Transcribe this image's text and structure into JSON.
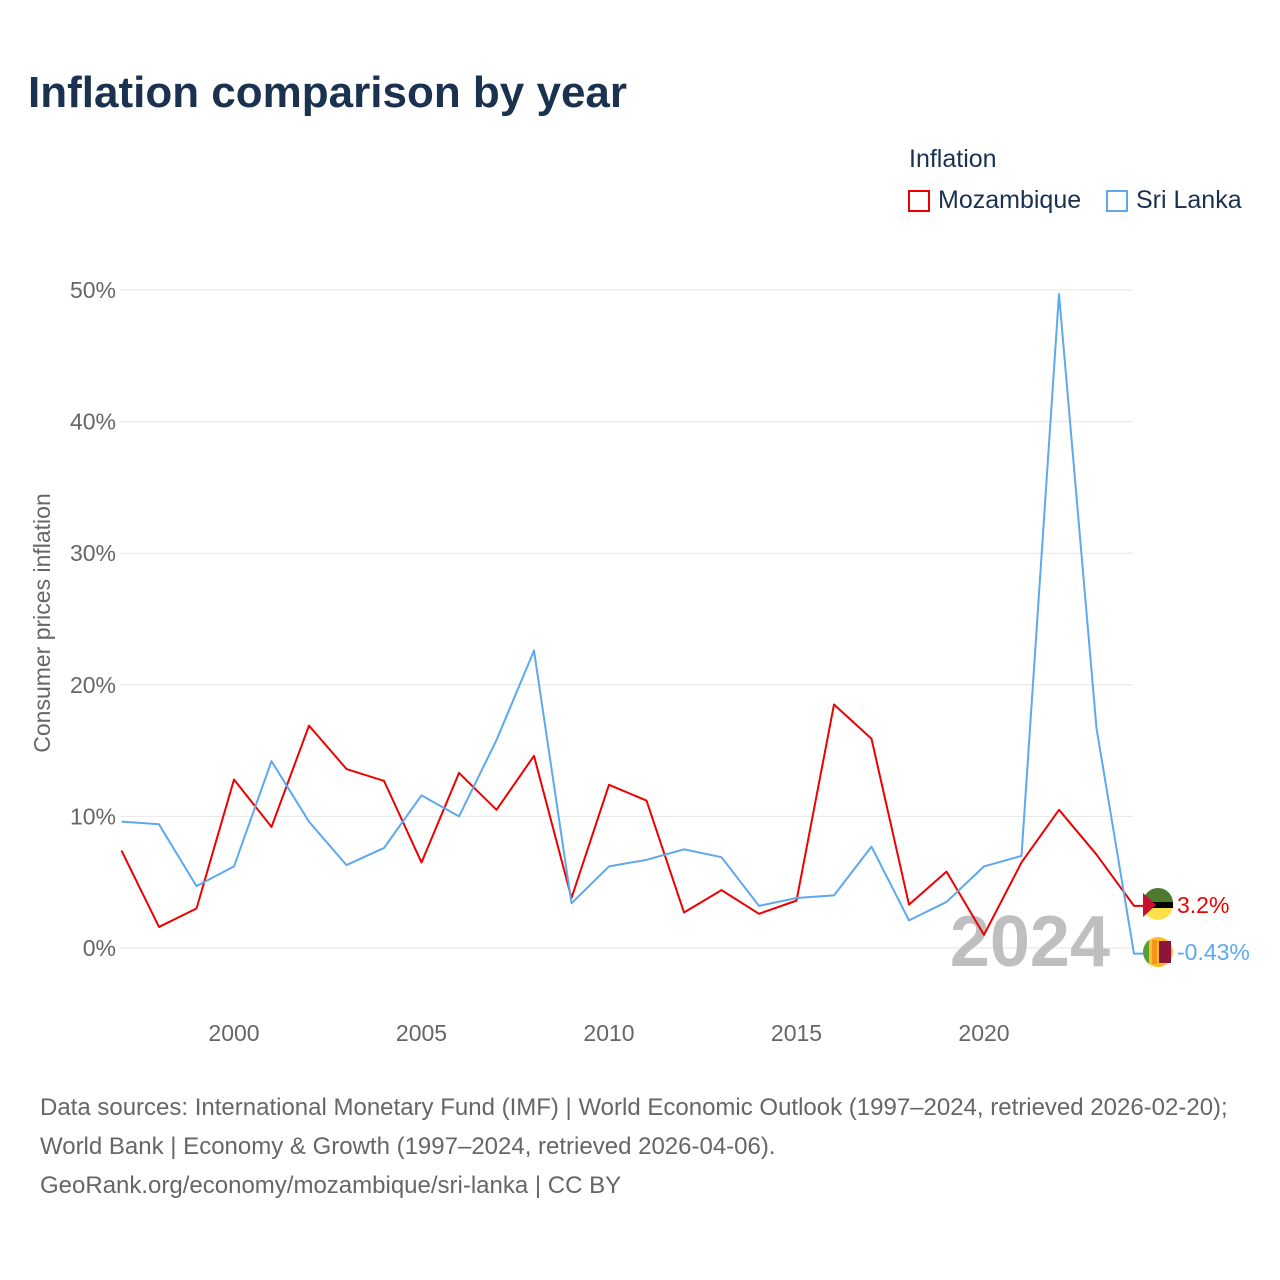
{
  "title": "Inflation comparison by year",
  "legend": {
    "title": "Inflation",
    "items": [
      "Mozambique",
      "Sri Lanka"
    ]
  },
  "footer": {
    "line": "Data sources: International Monetary Fund (IMF) | World Economic Outlook (1997–2024, retrieved 2026-02-20); World Bank | Economy & Growth (1997–2024, retrieved 2026-04-06).",
    "link": "GeoRank.org/economy/mozambique/sri-lanka | CC BY"
  },
  "chart_data": {
    "type": "line",
    "title": "Inflation comparison by year",
    "xlabel": "",
    "ylabel": "Consumer prices inflation",
    "ylim": [
      -5,
      52
    ],
    "yticks": [
      0,
      10,
      20,
      30,
      40,
      50
    ],
    "ytick_labels": [
      "0%",
      "10%",
      "20%",
      "30%",
      "40%",
      "50%"
    ],
    "xticks": [
      2000,
      2005,
      2010,
      2015,
      2020
    ],
    "xtick_labels": [
      "2000",
      "2005",
      "2010",
      "2015",
      "2020"
    ],
    "year_label": "2024",
    "x": [
      1997,
      1998,
      1999,
      2000,
      2001,
      2002,
      2003,
      2004,
      2005,
      2006,
      2007,
      2008,
      2009,
      2010,
      2011,
      2012,
      2013,
      2014,
      2015,
      2016,
      2017,
      2018,
      2019,
      2020,
      2021,
      2022,
      2023,
      2024
    ],
    "series": [
      {
        "name": "Mozambique",
        "color": "#ee0000",
        "end_label": "3.2%",
        "values": [
          7.4,
          1.6,
          3.0,
          12.8,
          9.2,
          16.9,
          13.6,
          12.7,
          6.5,
          13.3,
          10.5,
          14.6,
          3.8,
          12.4,
          11.2,
          2.7,
          4.4,
          2.6,
          3.6,
          18.5,
          15.9,
          3.3,
          5.8,
          1.0,
          6.5,
          10.5,
          7.1,
          3.2
        ]
      },
      {
        "name": "Sri Lanka",
        "color": "#5ea8f0",
        "end_label": "-0.43%",
        "values": [
          9.6,
          9.4,
          4.7,
          6.2,
          14.2,
          9.6,
          6.3,
          7.6,
          11.6,
          10.0,
          15.8,
          22.6,
          3.4,
          6.2,
          6.7,
          7.5,
          6.9,
          3.2,
          3.8,
          4.0,
          7.7,
          2.1,
          3.5,
          6.2,
          7.0,
          49.7,
          16.7,
          -0.43
        ]
      }
    ]
  }
}
